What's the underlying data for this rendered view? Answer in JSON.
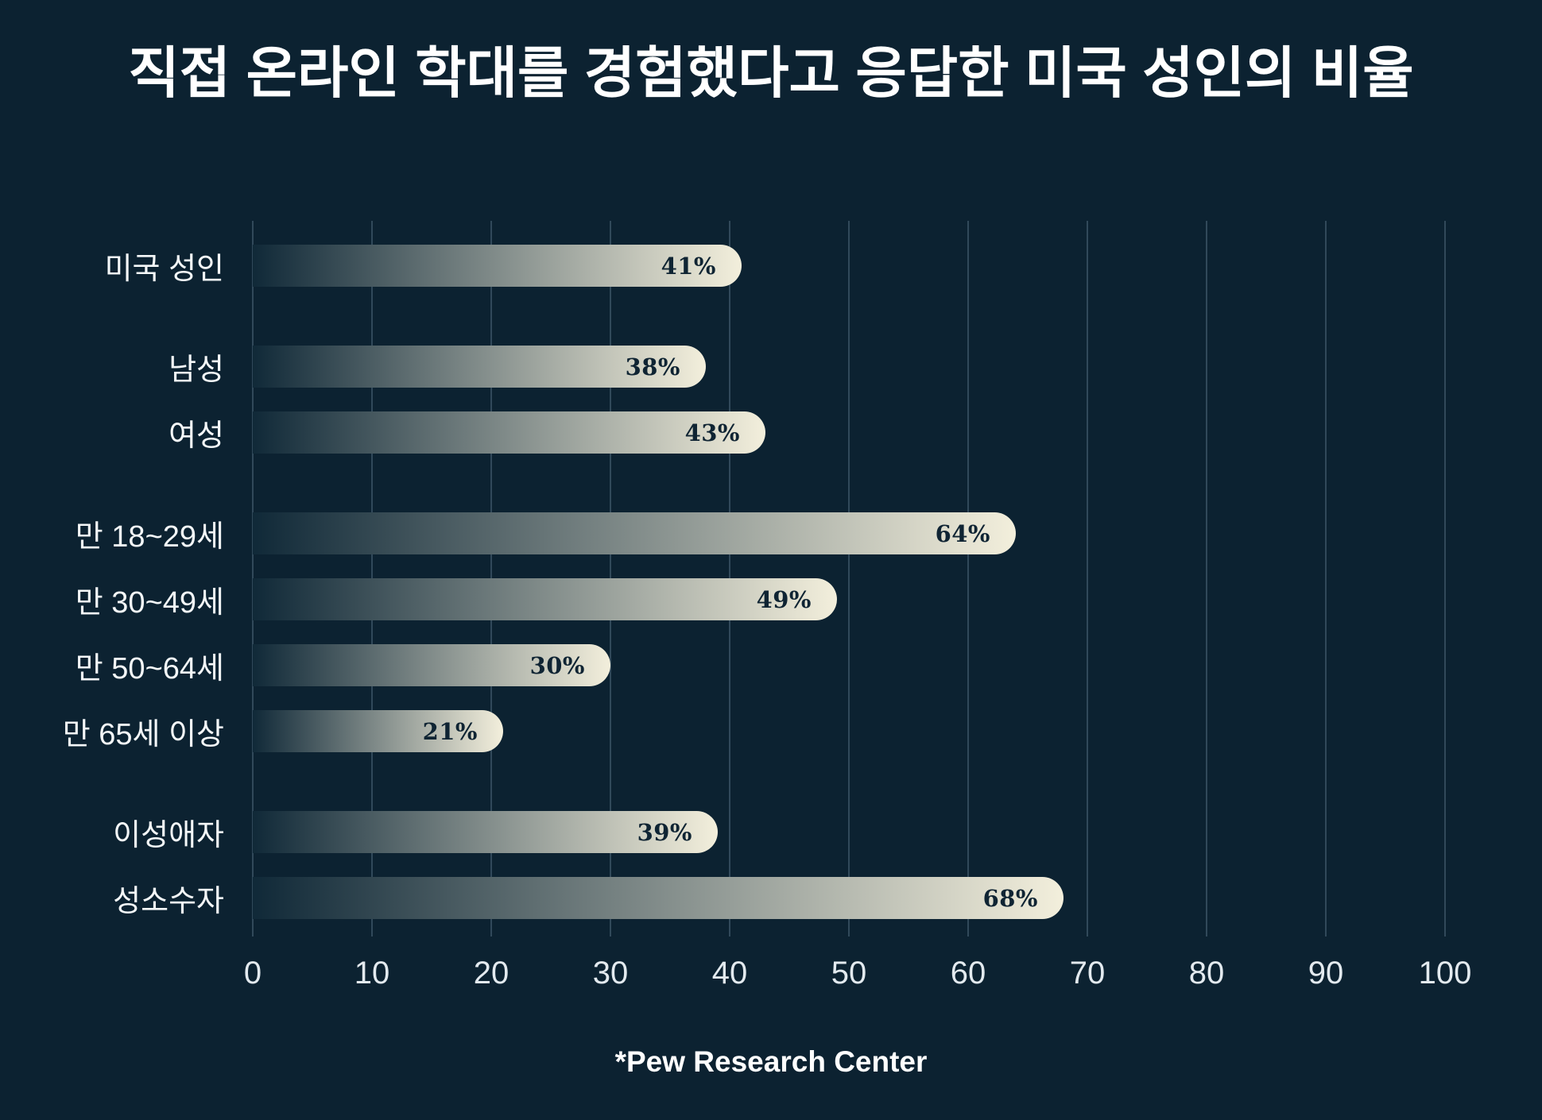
{
  "chart_data": {
    "type": "bar",
    "orientation": "horizontal",
    "title": "직접 온라인 학대를 경험했다고 응답한 미국 성인의 비율",
    "source": "*Pew Research Center",
    "categories": [
      "미국 성인",
      "남성",
      "여성",
      "만 18~29세",
      "만 30~49세",
      "만 50~64세",
      "만 65세 이상",
      "이성애자",
      "성소수자"
    ],
    "values": [
      41,
      38,
      43,
      64,
      49,
      30,
      21,
      39,
      68
    ],
    "value_labels": [
      "41%",
      "38%",
      "43%",
      "64%",
      "49%",
      "30%",
      "21%",
      "39%",
      "68%"
    ],
    "groups": [
      [
        0
      ],
      [
        1,
        2
      ],
      [
        3,
        4,
        5,
        6
      ],
      [
        7,
        8
      ]
    ],
    "xlim": [
      0,
      100
    ],
    "x_ticks": [
      0,
      10,
      20,
      30,
      40,
      50,
      60,
      70,
      80,
      90,
      100
    ],
    "grid": true,
    "legend": false,
    "colors": {
      "background": "#0c2231",
      "bar_gradient_start": "#102938",
      "bar_gradient_end": "#f3efdc",
      "value_text": "#0f2433",
      "category_text": "#f4f7f8",
      "tick_text": "#e3eaef",
      "gridline": "rgba(148, 175, 196, 0.28)",
      "title_text": "#ffffff",
      "source_text": "#ffffff"
    }
  }
}
